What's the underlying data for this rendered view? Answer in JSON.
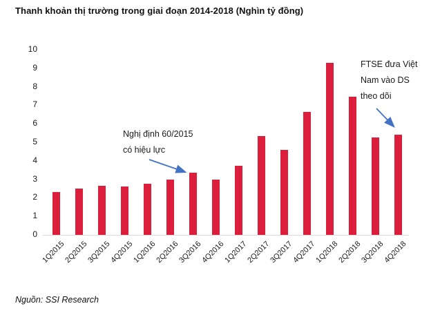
{
  "title": "Thanh khoản thị trường trong giai đoạn 2014-2018 (Nghìn tỷ đồng)",
  "source": "Nguồn: SSI Research",
  "colors": {
    "bar": "#DA1E3C",
    "arrow": "#4472C4",
    "axis_line": "#D9D9D9",
    "text": "#1A1A1A"
  },
  "annotations": [
    {
      "name": "decree-60-2015",
      "lines": [
        "Nghị định 60/2015",
        "có hiệu lực"
      ]
    },
    {
      "name": "ftse-watchlist",
      "lines": [
        "FTSE đưa Việt",
        "Nam vào DS",
        "theo dõi"
      ]
    }
  ],
  "chart_data": {
    "type": "bar",
    "title": "Thanh khoản thị trường trong giai đoạn 2014-2018 (Nghìn tỷ đồng)",
    "categories": [
      "1Q2015",
      "2Q2015",
      "3Q2015",
      "4Q2015",
      "1Q2016",
      "2Q2016",
      "3Q2016",
      "4Q2016",
      "1Q2017",
      "2Q2017",
      "3Q2017",
      "4Q2017",
      "1Q2018",
      "2Q2018",
      "3Q2018",
      "4Q2018"
    ],
    "values": [
      2.3,
      2.5,
      2.65,
      2.6,
      2.75,
      3.0,
      3.35,
      3.0,
      3.75,
      5.35,
      4.6,
      6.65,
      9.3,
      7.45,
      5.25,
      5.4
    ],
    "xlabel": "",
    "ylabel": "",
    "ylim": [
      0,
      10
    ],
    "yticks": [
      0,
      1,
      2,
      3,
      4,
      5,
      6,
      7,
      8,
      9,
      10
    ],
    "grid": false,
    "legend": "none",
    "bar_color": "#DA1E3C",
    "annotations": [
      {
        "text": "Nghị định 60/2015 có hiệu lực",
        "points_to": "3Q2016"
      },
      {
        "text": "FTSE đưa Việt Nam vào DS theo dõi",
        "points_to": "4Q2018"
      }
    ]
  }
}
